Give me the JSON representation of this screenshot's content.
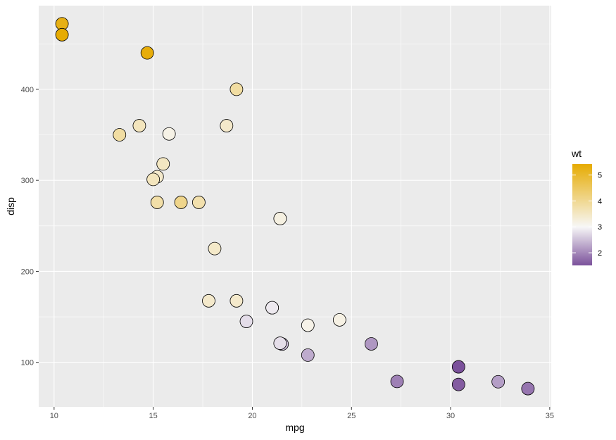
{
  "chart_data": {
    "type": "scatter",
    "title": "",
    "xlabel": "mpg",
    "ylabel": "disp",
    "xlim": [
      9.225,
      35.075
    ],
    "ylim": [
      51.055,
      491.945
    ],
    "x_ticks": [
      10,
      15,
      20,
      25,
      30,
      35
    ],
    "y_ticks": [
      100,
      200,
      300,
      400
    ],
    "grid": true,
    "legend": {
      "title": "wt",
      "position": "right",
      "range": [
        1.513,
        5.424
      ],
      "ticks": [
        2,
        3,
        4,
        5
      ],
      "midpoint": 3.0,
      "colors": {
        "low": "#7B519B",
        "mid": "#F7F7F7",
        "high": "#E6AB02"
      }
    },
    "points": [
      {
        "x": 21.0,
        "y": 160.0,
        "wt": 2.62
      },
      {
        "x": 21.0,
        "y": 160.0,
        "wt": 2.875
      },
      {
        "x": 22.8,
        "y": 108.0,
        "wt": 2.32
      },
      {
        "x": 21.4,
        "y": 258.0,
        "wt": 3.215
      },
      {
        "x": 18.7,
        "y": 360.0,
        "wt": 3.44
      },
      {
        "x": 18.1,
        "y": 225.0,
        "wt": 3.46
      },
      {
        "x": 14.3,
        "y": 360.0,
        "wt": 3.57
      },
      {
        "x": 24.4,
        "y": 146.7,
        "wt": 3.19
      },
      {
        "x": 22.8,
        "y": 140.8,
        "wt": 3.15
      },
      {
        "x": 19.2,
        "y": 167.6,
        "wt": 3.44
      },
      {
        "x": 17.8,
        "y": 167.6,
        "wt": 3.44
      },
      {
        "x": 16.4,
        "y": 275.8,
        "wt": 4.07
      },
      {
        "x": 17.3,
        "y": 275.8,
        "wt": 3.73
      },
      {
        "x": 15.2,
        "y": 275.8,
        "wt": 3.78
      },
      {
        "x": 10.4,
        "y": 472.0,
        "wt": 5.25
      },
      {
        "x": 10.4,
        "y": 460.0,
        "wt": 5.424
      },
      {
        "x": 14.7,
        "y": 440.0,
        "wt": 5.345
      },
      {
        "x": 32.4,
        "y": 78.7,
        "wt": 2.2
      },
      {
        "x": 30.4,
        "y": 75.7,
        "wt": 1.615
      },
      {
        "x": 33.9,
        "y": 71.1,
        "wt": 1.835
      },
      {
        "x": 21.5,
        "y": 120.1,
        "wt": 2.465
      },
      {
        "x": 15.5,
        "y": 318.0,
        "wt": 3.52
      },
      {
        "x": 15.2,
        "y": 304.0,
        "wt": 3.435
      },
      {
        "x": 13.3,
        "y": 350.0,
        "wt": 3.84
      },
      {
        "x": 19.2,
        "y": 400.0,
        "wt": 3.845
      },
      {
        "x": 27.3,
        "y": 79.0,
        "wt": 1.935
      },
      {
        "x": 26.0,
        "y": 120.3,
        "wt": 2.14
      },
      {
        "x": 30.4,
        "y": 95.1,
        "wt": 1.513
      },
      {
        "x": 15.8,
        "y": 351.0,
        "wt": 3.17
      },
      {
        "x": 19.7,
        "y": 145.0,
        "wt": 2.77
      },
      {
        "x": 15.0,
        "y": 301.0,
        "wt": 3.57
      },
      {
        "x": 21.4,
        "y": 121.0,
        "wt": 2.78
      }
    ]
  }
}
